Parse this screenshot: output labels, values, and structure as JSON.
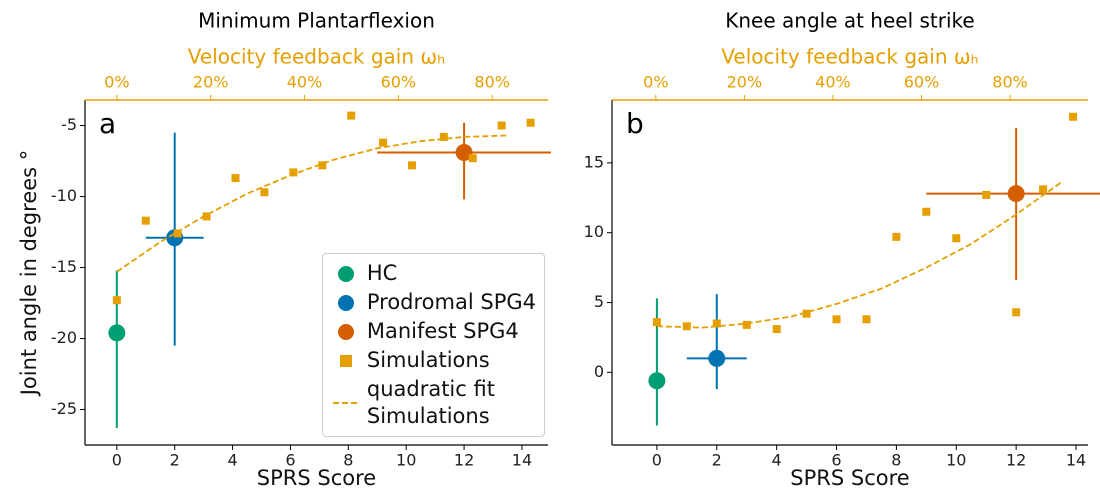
{
  "chart_data": [
    {
      "type": "scatter",
      "title": "Minimum Plantarflexion",
      "panel_label": "a",
      "xlabel": "SPRS Score",
      "ylabel": "Joint angle in degrees °",
      "x2label": "Velocity feedback gain ωₕ",
      "x2color": "#e69f00",
      "xlim": [
        -1.1,
        14.9
      ],
      "ylim": [
        -27.5,
        -3.2
      ],
      "xticks": [
        0,
        2,
        4,
        6,
        8,
        10,
        12,
        14
      ],
      "yticks": [
        -25,
        -20,
        -15,
        -10,
        -5
      ],
      "x2lim": [
        -6.8,
        91.9
      ],
      "x2ticks": [
        {
          "value": 0,
          "label": "0%"
        },
        {
          "value": 20,
          "label": "20%"
        },
        {
          "value": 40,
          "label": "40%"
        },
        {
          "value": 60,
          "label": "60%"
        },
        {
          "value": 80,
          "label": "80%"
        }
      ],
      "legend": "lower right",
      "series": [
        {
          "name": "HC",
          "color": "#009e73",
          "marker": "circle",
          "x": [
            0
          ],
          "values": [
            -19.6
          ],
          "ylow": [
            -26.3
          ],
          "yhigh": [
            -15.2
          ]
        },
        {
          "name": "Prodromal SPG4",
          "color": "#0072b2",
          "marker": "circle",
          "x": [
            2
          ],
          "values": [
            -12.9
          ],
          "ylow": [
            -20.5
          ],
          "yhigh": [
            -5.5
          ],
          "xlow": [
            1
          ],
          "xhigh": [
            3
          ]
        },
        {
          "name": "Manifest SPG4",
          "color": "#d55e00",
          "marker": "circle",
          "x": [
            12
          ],
          "values": [
            -6.9
          ],
          "ylow": [
            -10.2
          ],
          "yhigh": [
            -4.8
          ],
          "xlow": [
            9
          ],
          "xhigh": [
            15
          ]
        },
        {
          "name": "Simulations",
          "color": "#e69f00",
          "marker": "square",
          "x": [
            0,
            1.0,
            2.1,
            3.1,
            4.1,
            5.1,
            6.1,
            7.1,
            8.1,
            9.2,
            10.2,
            11.3,
            12.3,
            13.3,
            14.3
          ],
          "values": [
            -17.3,
            -11.7,
            -12.6,
            -11.4,
            -8.7,
            -9.7,
            -8.3,
            -7.8,
            -4.3,
            -6.2,
            -7.8,
            -5.8,
            -7.3,
            -5.0,
            -4.8
          ]
        },
        {
          "name": "quadratic fit\nSimulations",
          "color": "#e69f00",
          "marker": "dashed",
          "x": [
            0,
            1.5,
            3,
            4.5,
            6,
            7.5,
            9,
            10.5,
            12,
            13.5
          ],
          "values": [
            -15.3,
            -13.2,
            -11.4,
            -9.8,
            -8.5,
            -7.4,
            -6.6,
            -6.1,
            -5.8,
            -5.7
          ]
        }
      ]
    },
    {
      "type": "scatter",
      "title": "Knee angle at heel strike",
      "panel_label": "b",
      "xlabel": "SPRS Score",
      "x2label": "Velocity feedback gain ωₕ",
      "x2color": "#e69f00",
      "xlim": [
        -1.5,
        14.4
      ],
      "ylim": [
        -5.2,
        19.5
      ],
      "xticks": [
        0,
        2,
        4,
        6,
        8,
        10,
        12,
        14
      ],
      "yticks": [
        0,
        5,
        10,
        15
      ],
      "x2lim": [
        -9.9,
        97.6
      ],
      "x2ticks": [
        {
          "value": 0,
          "label": "0%"
        },
        {
          "value": 20,
          "label": "20%"
        },
        {
          "value": 40,
          "label": "40%"
        },
        {
          "value": 60,
          "label": "60%"
        },
        {
          "value": 80,
          "label": "80%"
        }
      ],
      "series": [
        {
          "color": "#009e73",
          "marker": "circle",
          "x": [
            0
          ],
          "values": [
            -0.6
          ],
          "ylow": [
            -3.8
          ],
          "yhigh": [
            5.3
          ]
        },
        {
          "color": "#0072b2",
          "marker": "circle",
          "x": [
            2
          ],
          "values": [
            1.0
          ],
          "ylow": [
            -1.2
          ],
          "yhigh": [
            5.6
          ],
          "xlow": [
            1
          ],
          "xhigh": [
            3
          ]
        },
        {
          "color": "#d55e00",
          "marker": "circle",
          "x": [
            12
          ],
          "values": [
            12.8
          ],
          "ylow": [
            6.6
          ],
          "yhigh": [
            17.5
          ],
          "xlow": [
            9
          ],
          "xhigh": [
            15
          ]
        },
        {
          "color": "#e69f00",
          "marker": "square",
          "x": [
            0,
            1.0,
            2.0,
            3.0,
            4.0,
            5.0,
            6.0,
            7.0,
            8.0,
            9.0,
            10.0,
            11.0,
            12.0,
            12.9,
            13.9
          ],
          "values": [
            3.6,
            3.3,
            3.5,
            3.4,
            3.1,
            4.2,
            3.8,
            3.8,
            9.7,
            11.5,
            9.6,
            12.7,
            4.3,
            13.1,
            18.3
          ]
        },
        {
          "color": "#e69f00",
          "marker": "dashed",
          "x": [
            0,
            1.5,
            3,
            4.5,
            6,
            7.5,
            9,
            10.5,
            12,
            13.5
          ],
          "values": [
            3.3,
            3.2,
            3.5,
            4.0,
            4.9,
            6.0,
            7.5,
            9.2,
            11.3,
            13.6
          ]
        }
      ]
    }
  ]
}
